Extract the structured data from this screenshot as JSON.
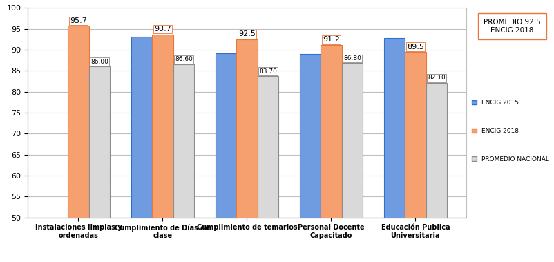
{
  "chart_data": {
    "type": "bar",
    "categories": [
      "Instalaciones limpias y ordenadas",
      "Cumplimiento de Días de clase",
      "Cumplimiento de temarios",
      "Personal Docente Capacitado",
      "Educación Publica Universitaria"
    ],
    "series": [
      {
        "name": "ENCIG 2015",
        "color": "#6f9be0",
        "values": [
          null,
          93.1,
          89.1,
          89.0,
          92.8
        ],
        "data_labels": false
      },
      {
        "name": "ENCIG 2018",
        "color": "#f5a06e",
        "values": [
          95.7,
          93.7,
          92.5,
          91.2,
          89.5
        ],
        "data_labels": true
      },
      {
        "name": "PROMEDIO NACIONAL",
        "color": "#d9d9d9",
        "values": [
          86.0,
          86.6,
          83.7,
          86.8,
          82.1
        ],
        "value_labels": [
          "86.00",
          "86.60",
          "83.70",
          "86.80",
          "82.10"
        ],
        "data_labels": true
      }
    ],
    "ylim": [
      50,
      100
    ],
    "yticks": [
      50,
      55,
      60,
      65,
      70,
      75,
      80,
      85,
      90,
      95,
      100
    ],
    "grid": true,
    "legend": "center right",
    "annotations": [
      "PROMEDIO 92.5\nENCIG 2018"
    ]
  }
}
